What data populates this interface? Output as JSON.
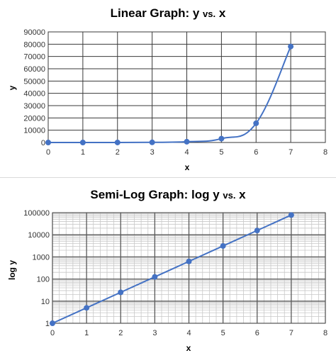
{
  "chart_data": [
    {
      "type": "line",
      "title_main": "Linear Graph: y ",
      "title_small": "vs.",
      "title_end": " x",
      "xlabel": "x",
      "ylabel": "y",
      "xlim": [
        0,
        8
      ],
      "ylim": [
        0,
        90000
      ],
      "x_ticks": [
        0,
        1,
        2,
        3,
        4,
        5,
        6,
        7,
        8
      ],
      "y_ticks": [
        0,
        10000,
        20000,
        30000,
        40000,
        50000,
        60000,
        70000,
        80000,
        90000
      ],
      "grid": true,
      "series": [
        {
          "x": [
            0,
            1,
            2,
            3,
            4,
            5,
            6,
            7
          ],
          "y": [
            1,
            5,
            25,
            125,
            625,
            3125,
            15625,
            78125
          ],
          "color": "#4472c4"
        }
      ]
    },
    {
      "type": "line",
      "scale_y": "log",
      "title_main": "Semi-Log Graph: log y ",
      "title_small": "vs.",
      "title_end": " x",
      "xlabel": "x",
      "ylabel": "log y",
      "xlim": [
        0,
        8
      ],
      "ylim": [
        1,
        100000
      ],
      "x_ticks": [
        0,
        1,
        2,
        3,
        4,
        5,
        6,
        7,
        8
      ],
      "y_ticks": [
        1,
        10,
        100,
        1000,
        10000,
        100000
      ],
      "grid": true,
      "minor_grid": true,
      "series": [
        {
          "x": [
            0,
            1,
            2,
            3,
            4,
            5,
            6,
            7
          ],
          "y": [
            1,
            5,
            25,
            125,
            625,
            3125,
            15625,
            78125
          ],
          "color": "#4472c4"
        }
      ]
    }
  ]
}
